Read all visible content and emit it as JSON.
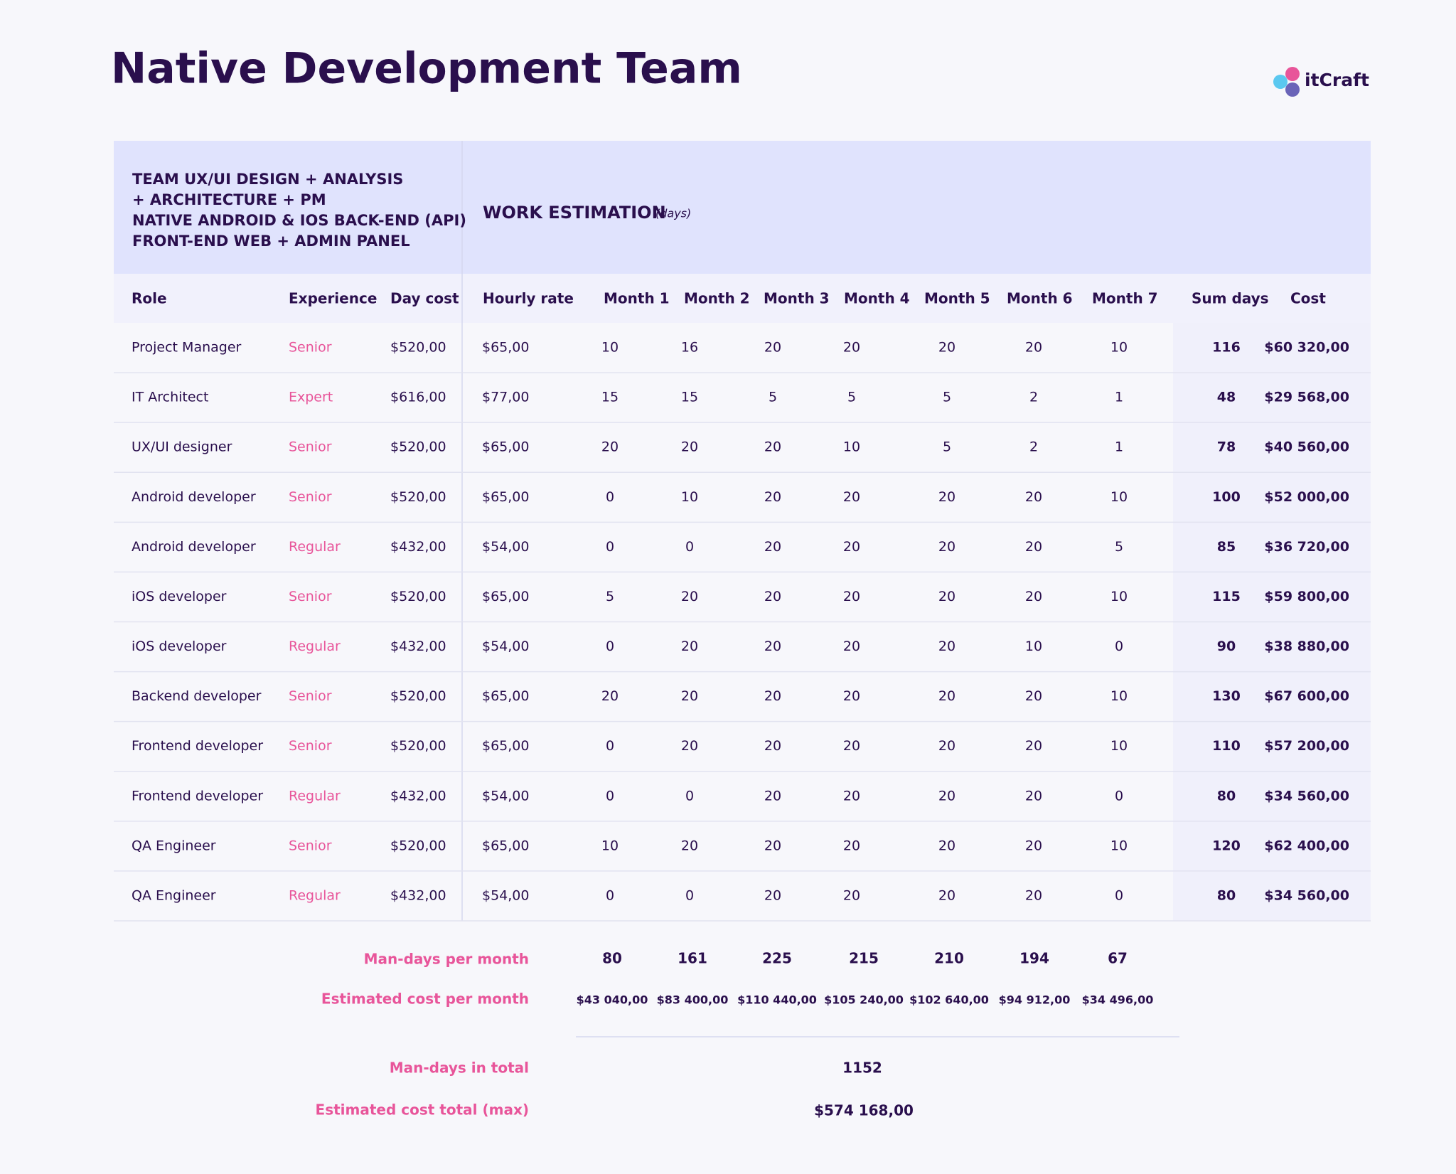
{
  "header": {
    "title": "Native Development Team",
    "logo": "itCraft"
  },
  "table": {
    "team": [
      "TEAM UX/UI DESIGN + ANALYSIS",
      "+ ARCHITECTURE + PM",
      "NATIVE ANDROID & IOS BACK-END (API)",
      "FRONT-END WEB + ADMIN PANEL"
    ],
    "estimation_title": "WORK ESTIMATION",
    "estimation_unit": "(days)",
    "columns": [
      "Role",
      "Experience",
      "Day cost",
      "Hourly rate",
      "Month 1",
      "Month 2",
      "Month 3",
      "Month 4",
      "Month 5",
      "Month 6",
      "Month 7",
      "Sum days",
      "Cost"
    ],
    "rows": [
      [
        "Project Manager",
        "Senior",
        "$520,00",
        "$65,00",
        10,
        16,
        20,
        20,
        20,
        20,
        10,
        116,
        "$60 320,00"
      ],
      [
        "IT Architect",
        "Expert",
        "$616,00",
        "$77,00",
        15,
        15,
        5,
        5,
        5,
        2,
        1,
        48,
        "$29 568,00"
      ],
      [
        "UX/UI designer",
        "Senior",
        "$520,00",
        "$65,00",
        20,
        20,
        20,
        10,
        5,
        2,
        1,
        78,
        "$40 560,00"
      ],
      [
        "Android developer",
        "Senior",
        "$520,00",
        "$65,00",
        0,
        10,
        20,
        20,
        20,
        20,
        10,
        100,
        "$52 000,00"
      ],
      [
        "Android developer",
        "Regular",
        "$432,00",
        "$54,00",
        0,
        0,
        20,
        20,
        20,
        20,
        5,
        85,
        "$36 720,00"
      ],
      [
        "iOS developer",
        "Senior",
        "$520,00",
        "$65,00",
        5,
        20,
        20,
        20,
        20,
        20,
        10,
        115,
        "$59 800,00"
      ],
      [
        "iOS developer",
        "Regular",
        "$432,00",
        "$54,00",
        0,
        20,
        20,
        20,
        20,
        10,
        0,
        90,
        "$38 880,00"
      ],
      [
        "Backend developer",
        "Senior",
        "$520,00",
        "$65,00",
        20,
        20,
        20,
        20,
        20,
        20,
        10,
        130,
        "$67 600,00"
      ],
      [
        "Frontend developer",
        "Senior",
        "$520,00",
        "$65,00",
        0,
        20,
        20,
        20,
        20,
        20,
        10,
        110,
        "$57 200,00"
      ],
      [
        "Frontend developer",
        "Regular",
        "$432,00",
        "$54,00",
        0,
        0,
        20,
        20,
        20,
        20,
        0,
        80,
        "$34 560,00"
      ],
      [
        "QA Engineer",
        "Senior",
        "$520,00",
        "$65,00",
        10,
        20,
        20,
        20,
        20,
        20,
        10,
        120,
        "$62 400,00"
      ],
      [
        "QA Engineer",
        "Regular",
        "$432,00",
        "$54,00",
        0,
        0,
        20,
        20,
        20,
        20,
        0,
        80,
        "$34 560,00"
      ]
    ]
  },
  "summary": {
    "man_days_label": "Man-days per month",
    "man_days": [
      80,
      161,
      225,
      215,
      210,
      194,
      67
    ],
    "cost_label": "Estimated cost per month",
    "costs": [
      "$43 040,00",
      "$83 400,00",
      "$110 440,00",
      "$105 240,00",
      "$102 640,00",
      "$94 912,00",
      "$34 496,00"
    ],
    "total_days_label": "Man-days in total",
    "total_days": 1152,
    "total_cost_label": "Estimated cost total (max)",
    "total_cost": "$574 168,00"
  }
}
